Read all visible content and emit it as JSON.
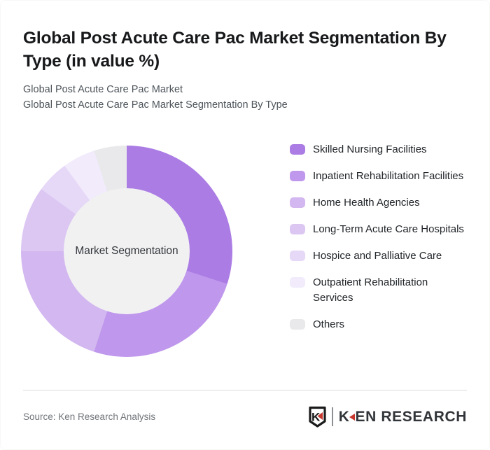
{
  "page": {
    "title": "Global Post Acute Care Pac Market Segmentation By Type (in value %)",
    "subtitle_line1": "Global Post Acute Care Pac Market",
    "subtitle_line2": "Global Post Acute Care Pac Market Segmentation By Type"
  },
  "chart_data": {
    "type": "pie",
    "style": "donut",
    "center_label": "Market Segmentation",
    "unit": "percent of value",
    "start_angle_deg": 0,
    "direction": "clockwise",
    "legend_position": "right",
    "hole_color": "#f1f1f2",
    "categories": [
      "Skilled Nursing Facilities",
      "Inpatient Rehabilitation Facilities",
      "Home Health Agencies",
      "Long-Term Acute Care Hospitals",
      "Hospice and Palliative Care",
      "Outpatient Rehabilitation Services",
      "Others"
    ],
    "values": [
      30,
      25,
      20,
      10,
      5,
      5,
      5
    ],
    "colors": [
      "#ab7ce4",
      "#bf97ec",
      "#d3b7f0",
      "#dcc7f3",
      "#e6d8f7",
      "#f1ebfb",
      "#e9e9eb"
    ]
  },
  "footer": {
    "source": "Source: Ken Research Analysis",
    "logo": {
      "badge_letter": "K",
      "wordmark_prefix": "K",
      "wordmark_suffix": "EN RESEARCH",
      "accent_color": "#c8372d",
      "ink_color": "#1b1b1b"
    }
  }
}
